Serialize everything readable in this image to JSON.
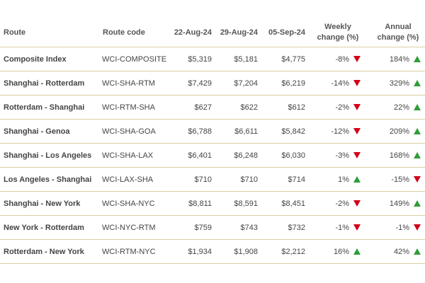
{
  "table": {
    "header": [
      "Route",
      "Route code",
      "22-Aug-24",
      "29-Aug-24",
      "05-Sep-24",
      "Weekly change (%)",
      "Annual change (%)"
    ],
    "rows": [
      [
        "Composite Index",
        "WCI-COMPOSITE",
        "$5,319",
        "$5,181",
        "$4,775",
        "-8%",
        "184%"
      ],
      [
        "Shanghai - Rotterdam",
        "WCI-SHA-RTM",
        "$7,429",
        "$7,204",
        "$6,219",
        "-14%",
        "329%"
      ],
      [
        "Rotterdam - Shanghai",
        "WCI-RTM-SHA",
        "$627",
        "$622",
        "$612",
        "-2%",
        "22%"
      ],
      [
        "Shanghai - Genoa",
        "WCI-SHA-GOA",
        "$6,788",
        "$6,611",
        "$5,842",
        "-12%",
        "209%"
      ],
      [
        "Shanghai - Los Angeles",
        "WCI-SHA-LAX",
        "$6,401",
        "$6,248",
        "$6,030",
        "-3%",
        "168%"
      ],
      [
        "Los Angeles - Shanghai",
        "WCI-LAX-SHA",
        "$710",
        "$710",
        "$714",
        "1%",
        "-15%"
      ],
      [
        "Shanghai - New York",
        "WCI-SHA-NYC",
        "$8,811",
        "$8,591",
        "$8,451",
        "-2%",
        "149%"
      ],
      [
        "New York - Rotterdam",
        "WCI-NYC-RTM",
        "$759",
        "$743",
        "$732",
        "-1%",
        "-1%"
      ],
      [
        "Rotterdam - New York",
        "WCI-RTM-NYC",
        "$1,934",
        "$1,908",
        "$2,212",
        "16%",
        "42%"
      ]
    ]
  }
}
